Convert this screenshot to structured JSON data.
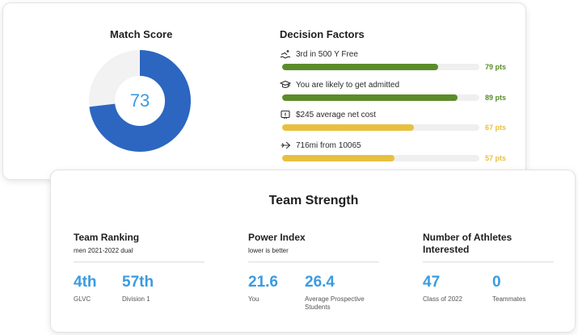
{
  "match_score": {
    "title": "Match Score",
    "score": 73,
    "score_label": "73",
    "ring_color": "#2c66c0",
    "track_color": "#f2f2f2"
  },
  "decision_factors": {
    "title": "Decision Factors",
    "items": [
      {
        "icon": "swimmer-icon",
        "label": "3rd in 500 Y Free",
        "pts_label": "79 pts",
        "pts": 79,
        "color": "#5b8c2a"
      },
      {
        "icon": "graduation-cap-icon",
        "label": "You are likely to get admitted",
        "pts_label": "89 pts",
        "pts": 89,
        "color": "#5b8c2a"
      },
      {
        "icon": "money-icon",
        "label": "$245 average net cost",
        "pts_label": "67 pts",
        "pts": 67,
        "color": "#e8c03f"
      },
      {
        "icon": "plane-icon",
        "label": "716mi from 10065",
        "pts_label": "57 pts",
        "pts": 57,
        "color": "#e8c03f"
      }
    ]
  },
  "team_strength": {
    "title": "Team Strength",
    "ranking": {
      "heading": "Team Ranking",
      "sub": "men 2021-2022 dual",
      "stats": [
        {
          "value": "4th",
          "caption": "GLVC"
        },
        {
          "value": "57th",
          "caption": "Division 1"
        }
      ]
    },
    "power": {
      "heading": "Power Index",
      "sub": "lower is better",
      "stats": [
        {
          "value": "21.6",
          "caption": "You"
        },
        {
          "value": "26.4",
          "caption": "Average Prospective Students"
        }
      ]
    },
    "athletes": {
      "heading": "Number of Athletes Interested",
      "stats": [
        {
          "value": "47",
          "caption": "Class of 2022"
        },
        {
          "value": "0",
          "caption": "Teammates"
        }
      ]
    }
  }
}
